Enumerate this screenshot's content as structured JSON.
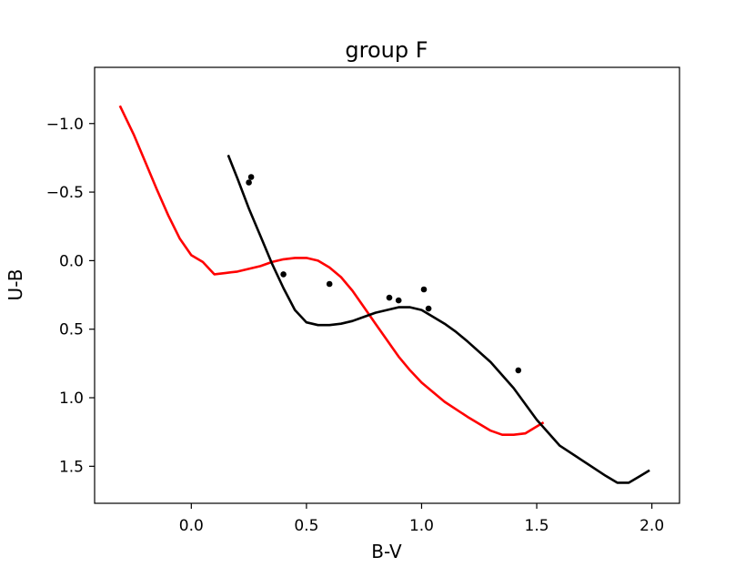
{
  "chart_data": {
    "type": "line",
    "title": "group F",
    "xlabel": "B-V",
    "ylabel": "U-B",
    "xlim": [
      -0.42,
      2.12
    ],
    "ylim": [
      1.77,
      -1.41
    ],
    "y_inverted": true,
    "grid": false,
    "x_ticks": [
      0.0,
      0.5,
      1.0,
      1.5,
      2.0
    ],
    "x_tick_labels": [
      "0.0",
      "0.5",
      "1.0",
      "1.5",
      "2.0"
    ],
    "y_ticks": [
      -1.0,
      -0.5,
      0.0,
      0.5,
      1.0,
      1.5
    ],
    "y_tick_labels": [
      "−1.0",
      "−0.5",
      "0.0",
      "0.5",
      "1.0",
      "1.5"
    ],
    "series": [
      {
        "color": "#ff0000",
        "kind": "line",
        "x": [
          -0.31,
          -0.25,
          -0.2,
          -0.15,
          -0.1,
          -0.05,
          0.0,
          0.05,
          0.1,
          0.15,
          0.2,
          0.25,
          0.3,
          0.35,
          0.4,
          0.45,
          0.5,
          0.55,
          0.6,
          0.65,
          0.7,
          0.75,
          0.8,
          0.85,
          0.9,
          0.95,
          1.0,
          1.1,
          1.2,
          1.3,
          1.35,
          1.4,
          1.45,
          1.5,
          1.53
        ],
        "y": [
          -1.13,
          -0.92,
          -0.72,
          -0.52,
          -0.33,
          -0.16,
          -0.04,
          0.01,
          0.1,
          0.09,
          0.08,
          0.06,
          0.04,
          0.01,
          -0.01,
          -0.02,
          -0.02,
          0.0,
          0.05,
          0.12,
          0.22,
          0.34,
          0.46,
          0.58,
          0.7,
          0.8,
          0.89,
          1.03,
          1.14,
          1.24,
          1.27,
          1.27,
          1.26,
          1.21,
          1.18
        ]
      },
      {
        "color": "#000000",
        "kind": "line",
        "x": [
          0.16,
          0.2,
          0.25,
          0.3,
          0.35,
          0.4,
          0.45,
          0.5,
          0.55,
          0.6,
          0.65,
          0.7,
          0.75,
          0.8,
          0.85,
          0.9,
          0.95,
          1.0,
          1.05,
          1.1,
          1.15,
          1.2,
          1.3,
          1.4,
          1.5,
          1.6,
          1.7,
          1.8,
          1.85,
          1.9,
          1.95,
          1.99
        ],
        "y": [
          -0.77,
          -0.6,
          -0.38,
          -0.18,
          0.02,
          0.2,
          0.36,
          0.45,
          0.47,
          0.47,
          0.46,
          0.44,
          0.41,
          0.38,
          0.36,
          0.34,
          0.34,
          0.36,
          0.41,
          0.46,
          0.52,
          0.59,
          0.74,
          0.93,
          1.16,
          1.35,
          1.46,
          1.57,
          1.62,
          1.62,
          1.57,
          1.53
        ]
      },
      {
        "color": "#000000",
        "kind": "scatter",
        "x": [
          0.25,
          0.26,
          0.4,
          0.6,
          0.86,
          0.9,
          1.01,
          1.03,
          1.42
        ],
        "y": [
          -0.57,
          -0.61,
          0.1,
          0.17,
          0.27,
          0.29,
          0.21,
          0.35,
          0.8
        ]
      }
    ]
  }
}
